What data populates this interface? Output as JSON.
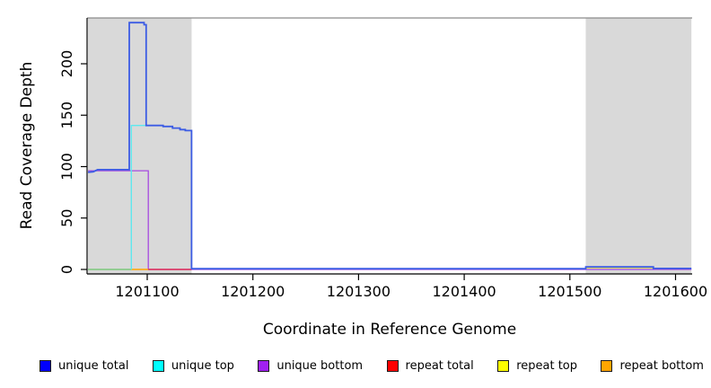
{
  "figure": {
    "ylabel": "Read Coverage Depth",
    "xlabel": "Coordinate in Reference Genome"
  },
  "chart_data": {
    "type": "line",
    "title": "",
    "xlabel": "Coordinate in Reference Genome",
    "ylabel": "Read Coverage Depth",
    "xlim": [
      1201043,
      1201615
    ],
    "ylim": [
      0,
      246
    ],
    "x_ticks": [
      1201100,
      1201200,
      1201300,
      1201400,
      1201500,
      1201600
    ],
    "y_ticks": [
      0,
      50,
      100,
      150,
      200
    ],
    "grid": false,
    "plot_background": "#ffffff",
    "masked_region_color": "#d9d9d9",
    "top_border_color": "#8a8a8a",
    "background_regions": [
      {
        "name": "left-masked-region",
        "x_start": 1201044,
        "x_end": 1201142
      },
      {
        "name": "right-masked-region",
        "x_start": 1201515,
        "x_end": 1201615
      }
    ],
    "series": [
      {
        "name": "unique bottom",
        "line_color": "#a64ae0",
        "width": 1.3,
        "points": [
          [
            1201044,
            96
          ],
          [
            1201101,
            96
          ],
          [
            1201101,
            0
          ],
          [
            1201615,
            0
          ]
        ]
      },
      {
        "name": "baseline-overlap-green",
        "line_color": "#7cc87c",
        "width": 1.6,
        "points": [
          [
            1201044,
            0
          ],
          [
            1201085,
            0
          ]
        ]
      },
      {
        "name": "repeat bottom",
        "line_color": "#ffa500",
        "width": 1.6,
        "points": [
          [
            1201085,
            0
          ],
          [
            1201101,
            0
          ]
        ]
      },
      {
        "name": "repeat total",
        "line_color": "#e02c55",
        "width": 1.6,
        "points": [
          [
            1201101,
            0
          ],
          [
            1201142,
            0
          ]
        ]
      },
      {
        "name": "repeat top",
        "line_color": "#d8dc5a",
        "width": 1.5,
        "points": [
          [
            1201515,
            1.5
          ],
          [
            1201579,
            1.5
          ]
        ]
      },
      {
        "name": "unique top",
        "line_color": "#5ee8ee",
        "width": 1.4,
        "points": [
          [
            1201085,
            0
          ],
          [
            1201085,
            140
          ],
          [
            1201101,
            140
          ]
        ]
      },
      {
        "name": "unique total",
        "line_color": "#3c5ce4",
        "width": 1.8,
        "points": [
          [
            1201044,
            94.5
          ],
          [
            1201049,
            95
          ],
          [
            1201053,
            97
          ],
          [
            1201083,
            97
          ],
          [
            1201083,
            240
          ],
          [
            1201097,
            240
          ],
          [
            1201097,
            238
          ],
          [
            1201099,
            238
          ],
          [
            1201099,
            140
          ],
          [
            1201115,
            140
          ],
          [
            1201115,
            139
          ],
          [
            1201124,
            139
          ],
          [
            1201124,
            137.5
          ],
          [
            1201131,
            137.5
          ],
          [
            1201131,
            136
          ],
          [
            1201136,
            136
          ],
          [
            1201136,
            135
          ],
          [
            1201142,
            135
          ],
          [
            1201142,
            0.7
          ],
          [
            1201515,
            0.7
          ],
          [
            1201515,
            2.5
          ],
          [
            1201579,
            2.5
          ],
          [
            1201579,
            1
          ],
          [
            1201615,
            1
          ]
        ]
      }
    ],
    "legend": {
      "position": "bottom",
      "entries": [
        {
          "label": "unique total",
          "color": "#0000ff"
        },
        {
          "label": "unique top",
          "color": "#00ffff"
        },
        {
          "label": "unique bottom",
          "color": "#a020f0"
        },
        {
          "label": "repeat total",
          "color": "#ff0000"
        },
        {
          "label": "repeat top",
          "color": "#ffff00"
        },
        {
          "label": "repeat bottom",
          "color": "#ffa500"
        }
      ]
    }
  }
}
